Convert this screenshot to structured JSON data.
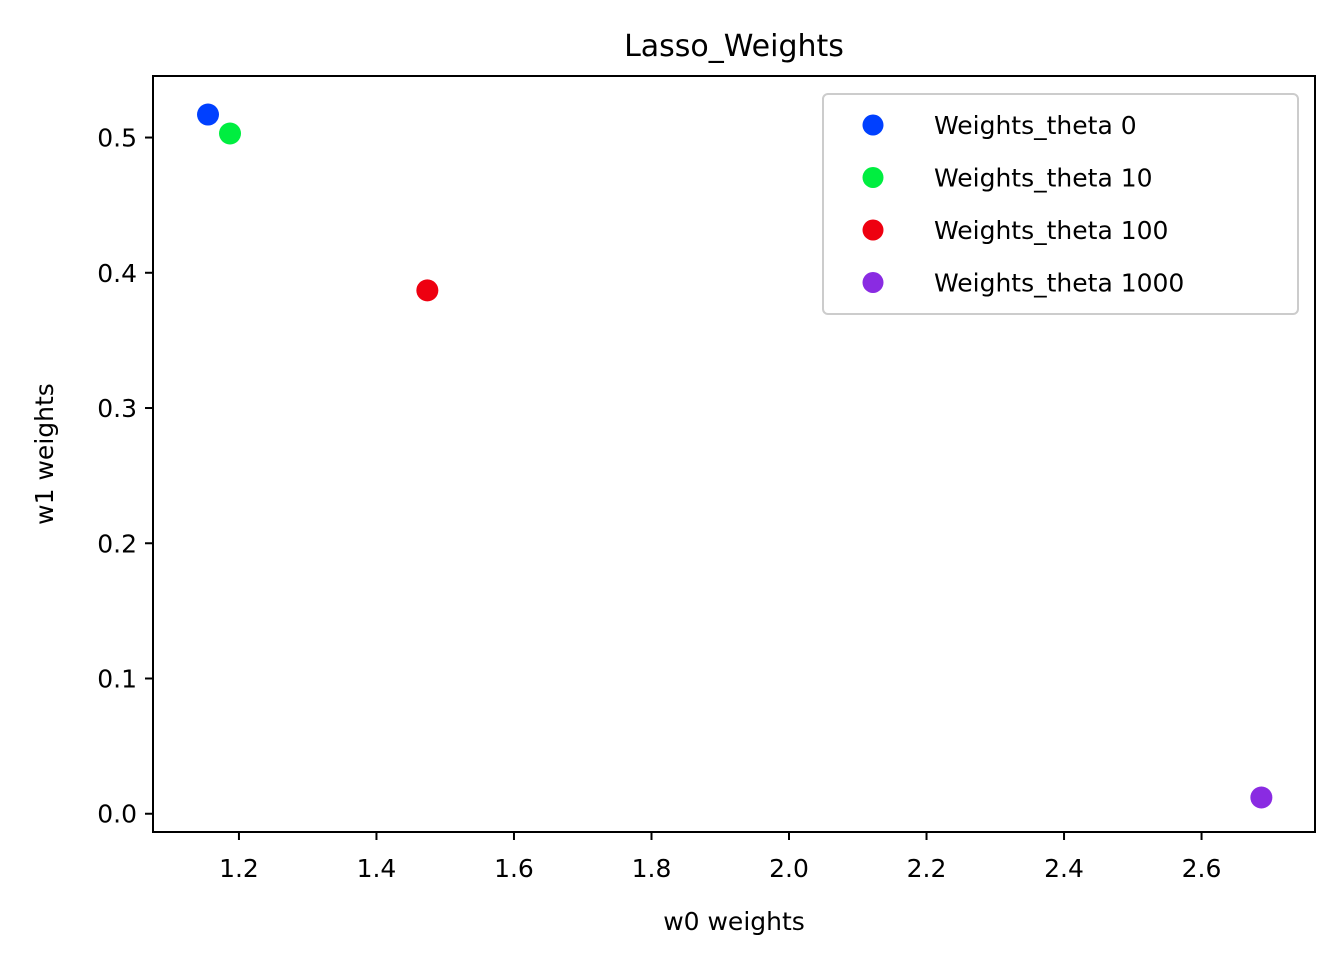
{
  "chart_data": {
    "type": "scatter",
    "title": "Lasso_Weights",
    "xlabel": "w0 weights",
    "ylabel": "w1 weights",
    "xlim": [
      1.075,
      2.765
    ],
    "ylim": [
      -0.0135,
      0.5455
    ],
    "x_ticks": [
      1.2,
      1.4,
      1.6,
      1.8,
      2.0,
      2.2,
      2.4,
      2.6
    ],
    "x_tick_labels": [
      "1.2",
      "1.4",
      "1.6",
      "1.8",
      "2.0",
      "2.2",
      "2.4",
      "2.6"
    ],
    "y_ticks": [
      0.0,
      0.1,
      0.2,
      0.3,
      0.4,
      0.5
    ],
    "y_tick_labels": [
      "0.0",
      "0.1",
      "0.2",
      "0.3",
      "0.4",
      "0.5"
    ],
    "grid": false,
    "legend_position": "top-right",
    "series": [
      {
        "name": "Weights_theta 0",
        "color": "#0040ff",
        "x": [
          1.155
        ],
        "y": [
          0.517
        ]
      },
      {
        "name": "Weights_theta 10",
        "color": "#00ee40",
        "x": [
          1.187
        ],
        "y": [
          0.503
        ]
      },
      {
        "name": "Weights_theta 100",
        "color": "#ee0010",
        "x": [
          1.474
        ],
        "y": [
          0.387
        ]
      },
      {
        "name": "Weights_theta 1000",
        "color": "#8a2be2",
        "x": [
          2.687
        ],
        "y": [
          0.012
        ]
      }
    ]
  }
}
